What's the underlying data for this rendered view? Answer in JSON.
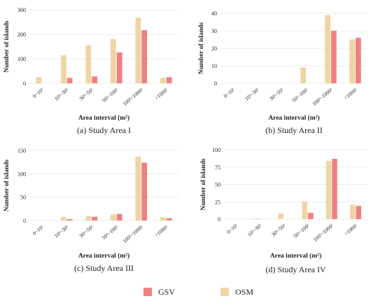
{
  "legend": [
    {
      "label": "GSV",
      "color": "#f08080"
    },
    {
      "label": "OSM",
      "color": "#f0d4a4"
    }
  ],
  "chart_data": [
    {
      "type": "bar",
      "caption": "(a) Study Area I",
      "xlabel": "Area interval (m²)",
      "ylabel": "Number of islands",
      "categories": [
        "0~10¹",
        "10¹~30¹",
        "30¹~50¹",
        "50¹~100¹",
        "100¹~1000¹",
        ">1000¹"
      ],
      "ylim": [
        0,
        300
      ],
      "yticks": [
        "0",
        "100",
        "200",
        "300"
      ],
      "grid": true,
      "series": [
        {
          "name": "OSM",
          "color": "#f0d4a4",
          "values": [
            25,
            115,
            155,
            181,
            268,
            22
          ]
        },
        {
          "name": "GSV",
          "color": "#f08080",
          "values": [
            0,
            22,
            28,
            126,
            217,
            25
          ]
        }
      ]
    },
    {
      "type": "bar",
      "caption": "(b)  Study Area II",
      "xlabel": "Area interval (m²)",
      "ylabel": "Number of islands",
      "categories": [
        "0~10¹",
        "10¹~30¹",
        "30¹~50¹",
        "50¹~100¹",
        "100¹~1000¹",
        ">1000¹"
      ],
      "ylim": [
        0,
        40
      ],
      "yticks": [
        "0",
        "10",
        "20",
        "30",
        "40"
      ],
      "grid": true,
      "series": [
        {
          "name": "OSM",
          "color": "#f0d4a4",
          "values": [
            0,
            0,
            0,
            9,
            39,
            25
          ]
        },
        {
          "name": "GSV",
          "color": "#f08080",
          "values": [
            0,
            0,
            0,
            0,
            30,
            26
          ]
        }
      ]
    },
    {
      "type": "bar",
      "caption": "(c)  Study Area III",
      "xlabel": "Area interval (m²)",
      "ylabel": "Number of islands",
      "categories": [
        "0~10¹",
        "10¹~30¹",
        "30¹~50¹",
        "50¹~100¹",
        "100¹~1000¹",
        ">1000¹"
      ],
      "ylim": [
        0,
        150
      ],
      "yticks": [
        "0",
        "50",
        "100",
        "150"
      ],
      "grid": true,
      "series": [
        {
          "name": "OSM",
          "color": "#f0d4a4",
          "values": [
            0,
            8,
            10,
            13,
            137,
            7
          ]
        },
        {
          "name": "GSV",
          "color": "#f08080",
          "values": [
            0,
            3,
            8,
            14,
            124,
            5
          ]
        }
      ]
    },
    {
      "type": "bar",
      "caption": "(d)  Study Area IV",
      "xlabel": "Area interval (m²)",
      "ylabel": "Number of islands",
      "categories": [
        "0~10¹",
        "10¹~30¹",
        "30¹~50¹",
        "50¹~100¹",
        "100¹~1000¹",
        ">1000¹"
      ],
      "ylim": [
        0,
        100
      ],
      "yticks": [
        "0",
        "25",
        "50",
        "75",
        "100"
      ],
      "grid": true,
      "series": [
        {
          "name": "OSM",
          "color": "#f0d4a4",
          "values": [
            0,
            1,
            8,
            25,
            84,
            21
          ]
        },
        {
          "name": "GSV",
          "color": "#f08080",
          "values": [
            0,
            0,
            0,
            9,
            87,
            19
          ]
        }
      ]
    }
  ]
}
